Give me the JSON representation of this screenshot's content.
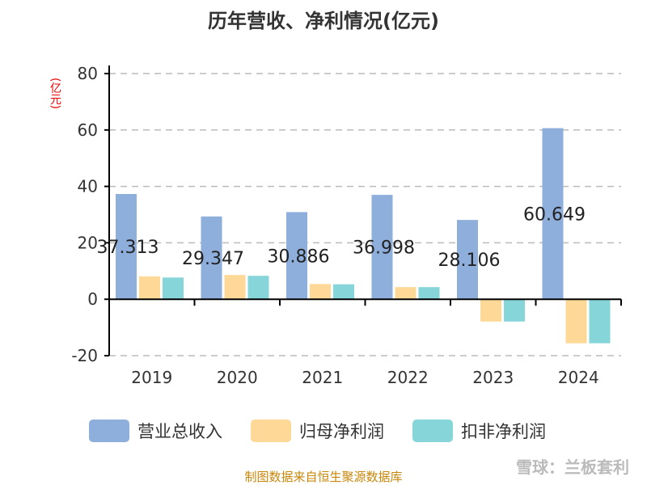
{
  "chart_data": {
    "type": "bar",
    "title": "历年营收、净利情况(亿元)",
    "ylabel": "(亿元)",
    "ylim": [
      -20,
      80
    ],
    "yticks": [
      -20,
      0,
      20,
      40,
      60,
      80
    ],
    "grid": true,
    "legend_placement": "bottom",
    "categories": [
      "2019",
      "2020",
      "2021",
      "2022",
      "2023",
      "2024"
    ],
    "series": [
      {
        "name": "营业总收入",
        "color": "#8eaedb",
        "values": [
          37.313,
          29.347,
          30.886,
          36.998,
          28.106,
          60.649
        ],
        "labels": [
          "37.313",
          "29.347",
          "30.886",
          "36.998",
          "28.106",
          "60.649"
        ]
      },
      {
        "name": "归母净利润",
        "color": "#fed897",
        "values": [
          8.1,
          8.6,
          5.4,
          4.3,
          -7.9,
          -15.6
        ]
      },
      {
        "name": "扣非净利润",
        "color": "#86d5d8",
        "values": [
          7.7,
          8.3,
          5.3,
          4.3,
          -7.9,
          -15.6
        ]
      }
    ]
  },
  "footer": "制图数据来自恒生聚源数据库",
  "watermark": "雪球：兰板套利"
}
